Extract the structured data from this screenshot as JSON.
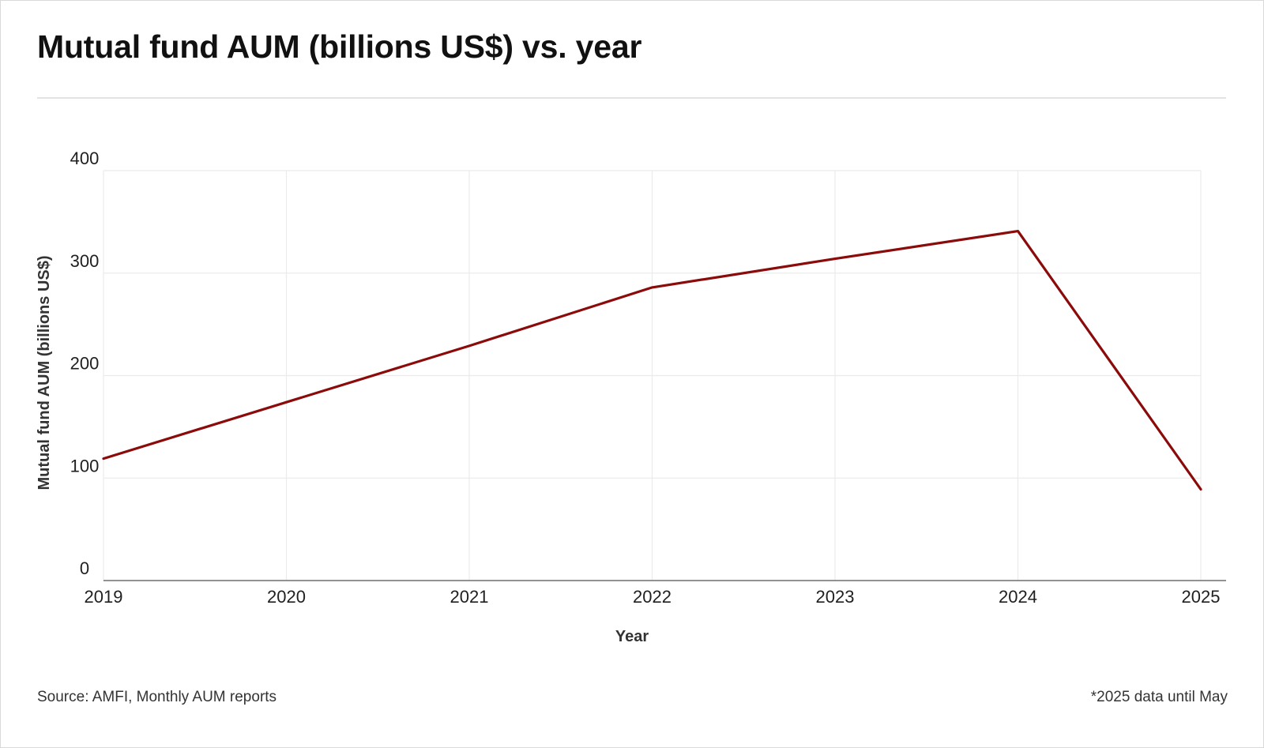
{
  "page": {
    "title": "Mutual fund AUM (billions US$) vs. year",
    "source": "Source: AMFI, Monthly AUM reports",
    "footnote": "*2025 data until May"
  },
  "chart_data": {
    "type": "line",
    "x": [
      2019,
      2020,
      2021,
      2022,
      2023,
      2024,
      2025
    ],
    "series": [
      {
        "values": [
          119,
          174,
          229,
          286,
          314,
          341,
          89
        ],
        "color": "#8b0a0a"
      }
    ],
    "xlabel": "Year",
    "ylabel": "Mutual fund AUM (billions US$)",
    "xlim": [
      2019,
      2025
    ],
    "ylim": [
      0,
      400
    ],
    "yticks": [
      0,
      100,
      200,
      300,
      400
    ],
    "xticks": [
      "2019",
      "2020",
      "2021",
      "2022",
      "2023",
      "2024",
      "2025"
    ],
    "grid": true,
    "legend": "none",
    "colors": {
      "line": "#8b0a0a",
      "grid": "#ebebeb",
      "axis": "#6e6e6e"
    }
  }
}
